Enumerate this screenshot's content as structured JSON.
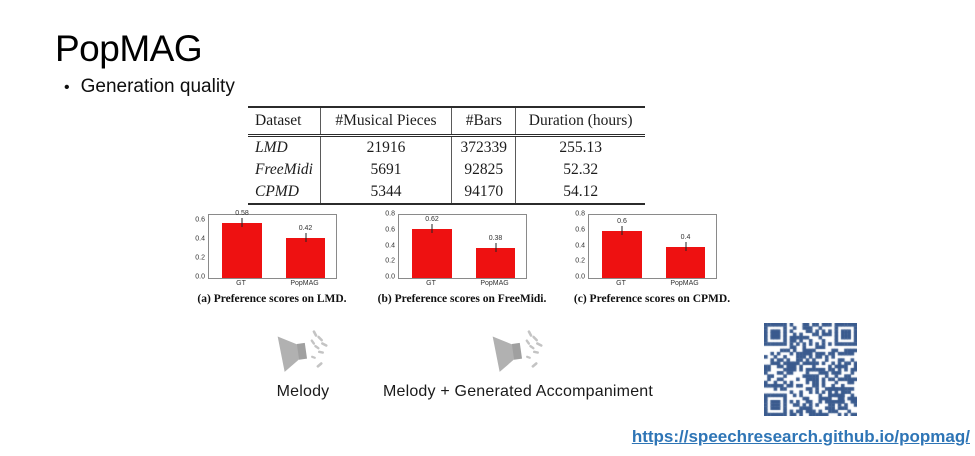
{
  "slide": {
    "title": "PopMAG",
    "bullet_marker": "•",
    "bullet": "Generation quality"
  },
  "table": {
    "headers": [
      "Dataset",
      "#Musical Pieces",
      "#Bars",
      "Duration (hours)"
    ],
    "rows": [
      [
        "LMD",
        "21916",
        "372339",
        "255.13"
      ],
      [
        "FreeMidi",
        "5691",
        "92825",
        "52.32"
      ],
      [
        "CPMD",
        "5344",
        "94170",
        "54.12"
      ]
    ]
  },
  "chart_data": [
    {
      "type": "bar",
      "title": "(a) Preference scores on LMD.",
      "categories": [
        "GT",
        "PopMAG"
      ],
      "values": [
        0.58,
        0.42
      ],
      "value_labels": [
        "0.58",
        "0.42"
      ],
      "yticks": [
        0,
        0.2,
        0.4,
        0.6
      ],
      "ylim": [
        0,
        0.66
      ],
      "xlabel": "",
      "ylabel": "",
      "grid": false,
      "legend": "none",
      "bar_color": "#ee1111"
    },
    {
      "type": "bar",
      "title": "(b) Preference scores on FreeMidi.",
      "categories": [
        "GT",
        "PopMAG"
      ],
      "values": [
        0.62,
        0.38
      ],
      "value_labels": [
        "0.62",
        "0.38"
      ],
      "yticks": [
        0,
        0.2,
        0.4,
        0.6,
        0.8
      ],
      "ylim": [
        0,
        0.8
      ],
      "xlabel": "",
      "ylabel": "",
      "grid": false,
      "legend": "none",
      "bar_color": "#ee1111"
    },
    {
      "type": "bar",
      "title": "(c) Preference scores on CPMD.",
      "categories": [
        "GT",
        "PopMAG"
      ],
      "values": [
        0.6,
        0.4
      ],
      "value_labels": [
        "0.6",
        "0.4"
      ],
      "yticks": [
        0,
        0.2,
        0.4,
        0.6,
        0.8
      ],
      "ylim": [
        0,
        0.8
      ],
      "xlabel": "",
      "ylabel": "",
      "grid": false,
      "legend": "none",
      "bar_color": "#ee1111"
    }
  ],
  "audio": {
    "items": [
      {
        "icon": "speaker-icon",
        "label": "Melody"
      },
      {
        "icon": "speaker-icon",
        "label": "Melody + Generated Accompaniment"
      }
    ]
  },
  "qr": {
    "icon": "qr-code",
    "color": "#3a5b8e"
  },
  "link": {
    "text": "https://speechresearch.github.io/popmag/",
    "color": "#2e75b6"
  },
  "colors": {
    "bar_red": "#ee1111",
    "qr_blue": "#3a5b8e",
    "link_blue": "#2e75b6",
    "speaker_gray": "#b1b1b1",
    "speaker_wave_gray": "#c4c4c4"
  }
}
